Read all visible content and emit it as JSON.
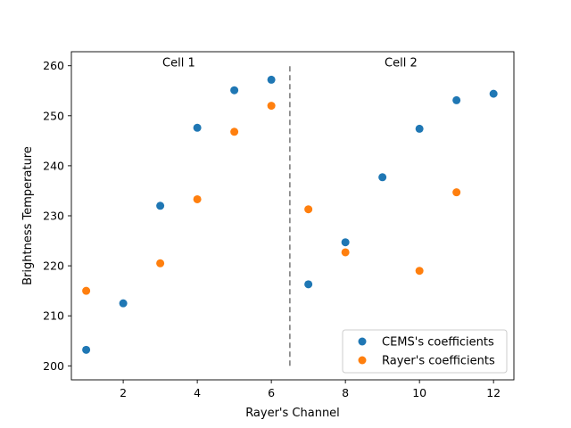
{
  "chart_data": {
    "type": "scatter",
    "xlabel": "Rayer's Channel",
    "ylabel": "Brightness Temperature",
    "xlim": [
      0.6,
      12.55
    ],
    "ylim": [
      197.2,
      262.8
    ],
    "xticks": [
      2,
      4,
      6,
      8,
      10,
      12
    ],
    "yticks": [
      200,
      210,
      220,
      230,
      240,
      250,
      260
    ],
    "grid": false,
    "legend_position": "bottom-right",
    "series": [
      {
        "name": "CEMS's coefficients",
        "color": "#1f77b4",
        "x": [
          1,
          2,
          3,
          4,
          5,
          6,
          7,
          8,
          9,
          10,
          11,
          12
        ],
        "y": [
          203.2,
          212.5,
          232.0,
          247.6,
          255.1,
          257.2,
          216.3,
          224.7,
          237.7,
          247.4,
          253.1,
          254.4
        ]
      },
      {
        "name": "Rayer's coefficients",
        "color": "#ff7f0e",
        "x": [
          1,
          3,
          4,
          5,
          6,
          7,
          8,
          10,
          11
        ],
        "y": [
          215.0,
          220.5,
          233.3,
          246.8,
          252.0,
          231.3,
          222.7,
          219.0,
          234.7
        ]
      }
    ],
    "divider": {
      "x": 6.5,
      "y": [
        200,
        260
      ],
      "style": "dashed",
      "color": "#777777"
    },
    "annotations": [
      {
        "text": "Cell 1",
        "x": 3.5,
        "y": 260
      },
      {
        "text": "Cell 2",
        "x": 9.5,
        "y": 260
      }
    ]
  }
}
